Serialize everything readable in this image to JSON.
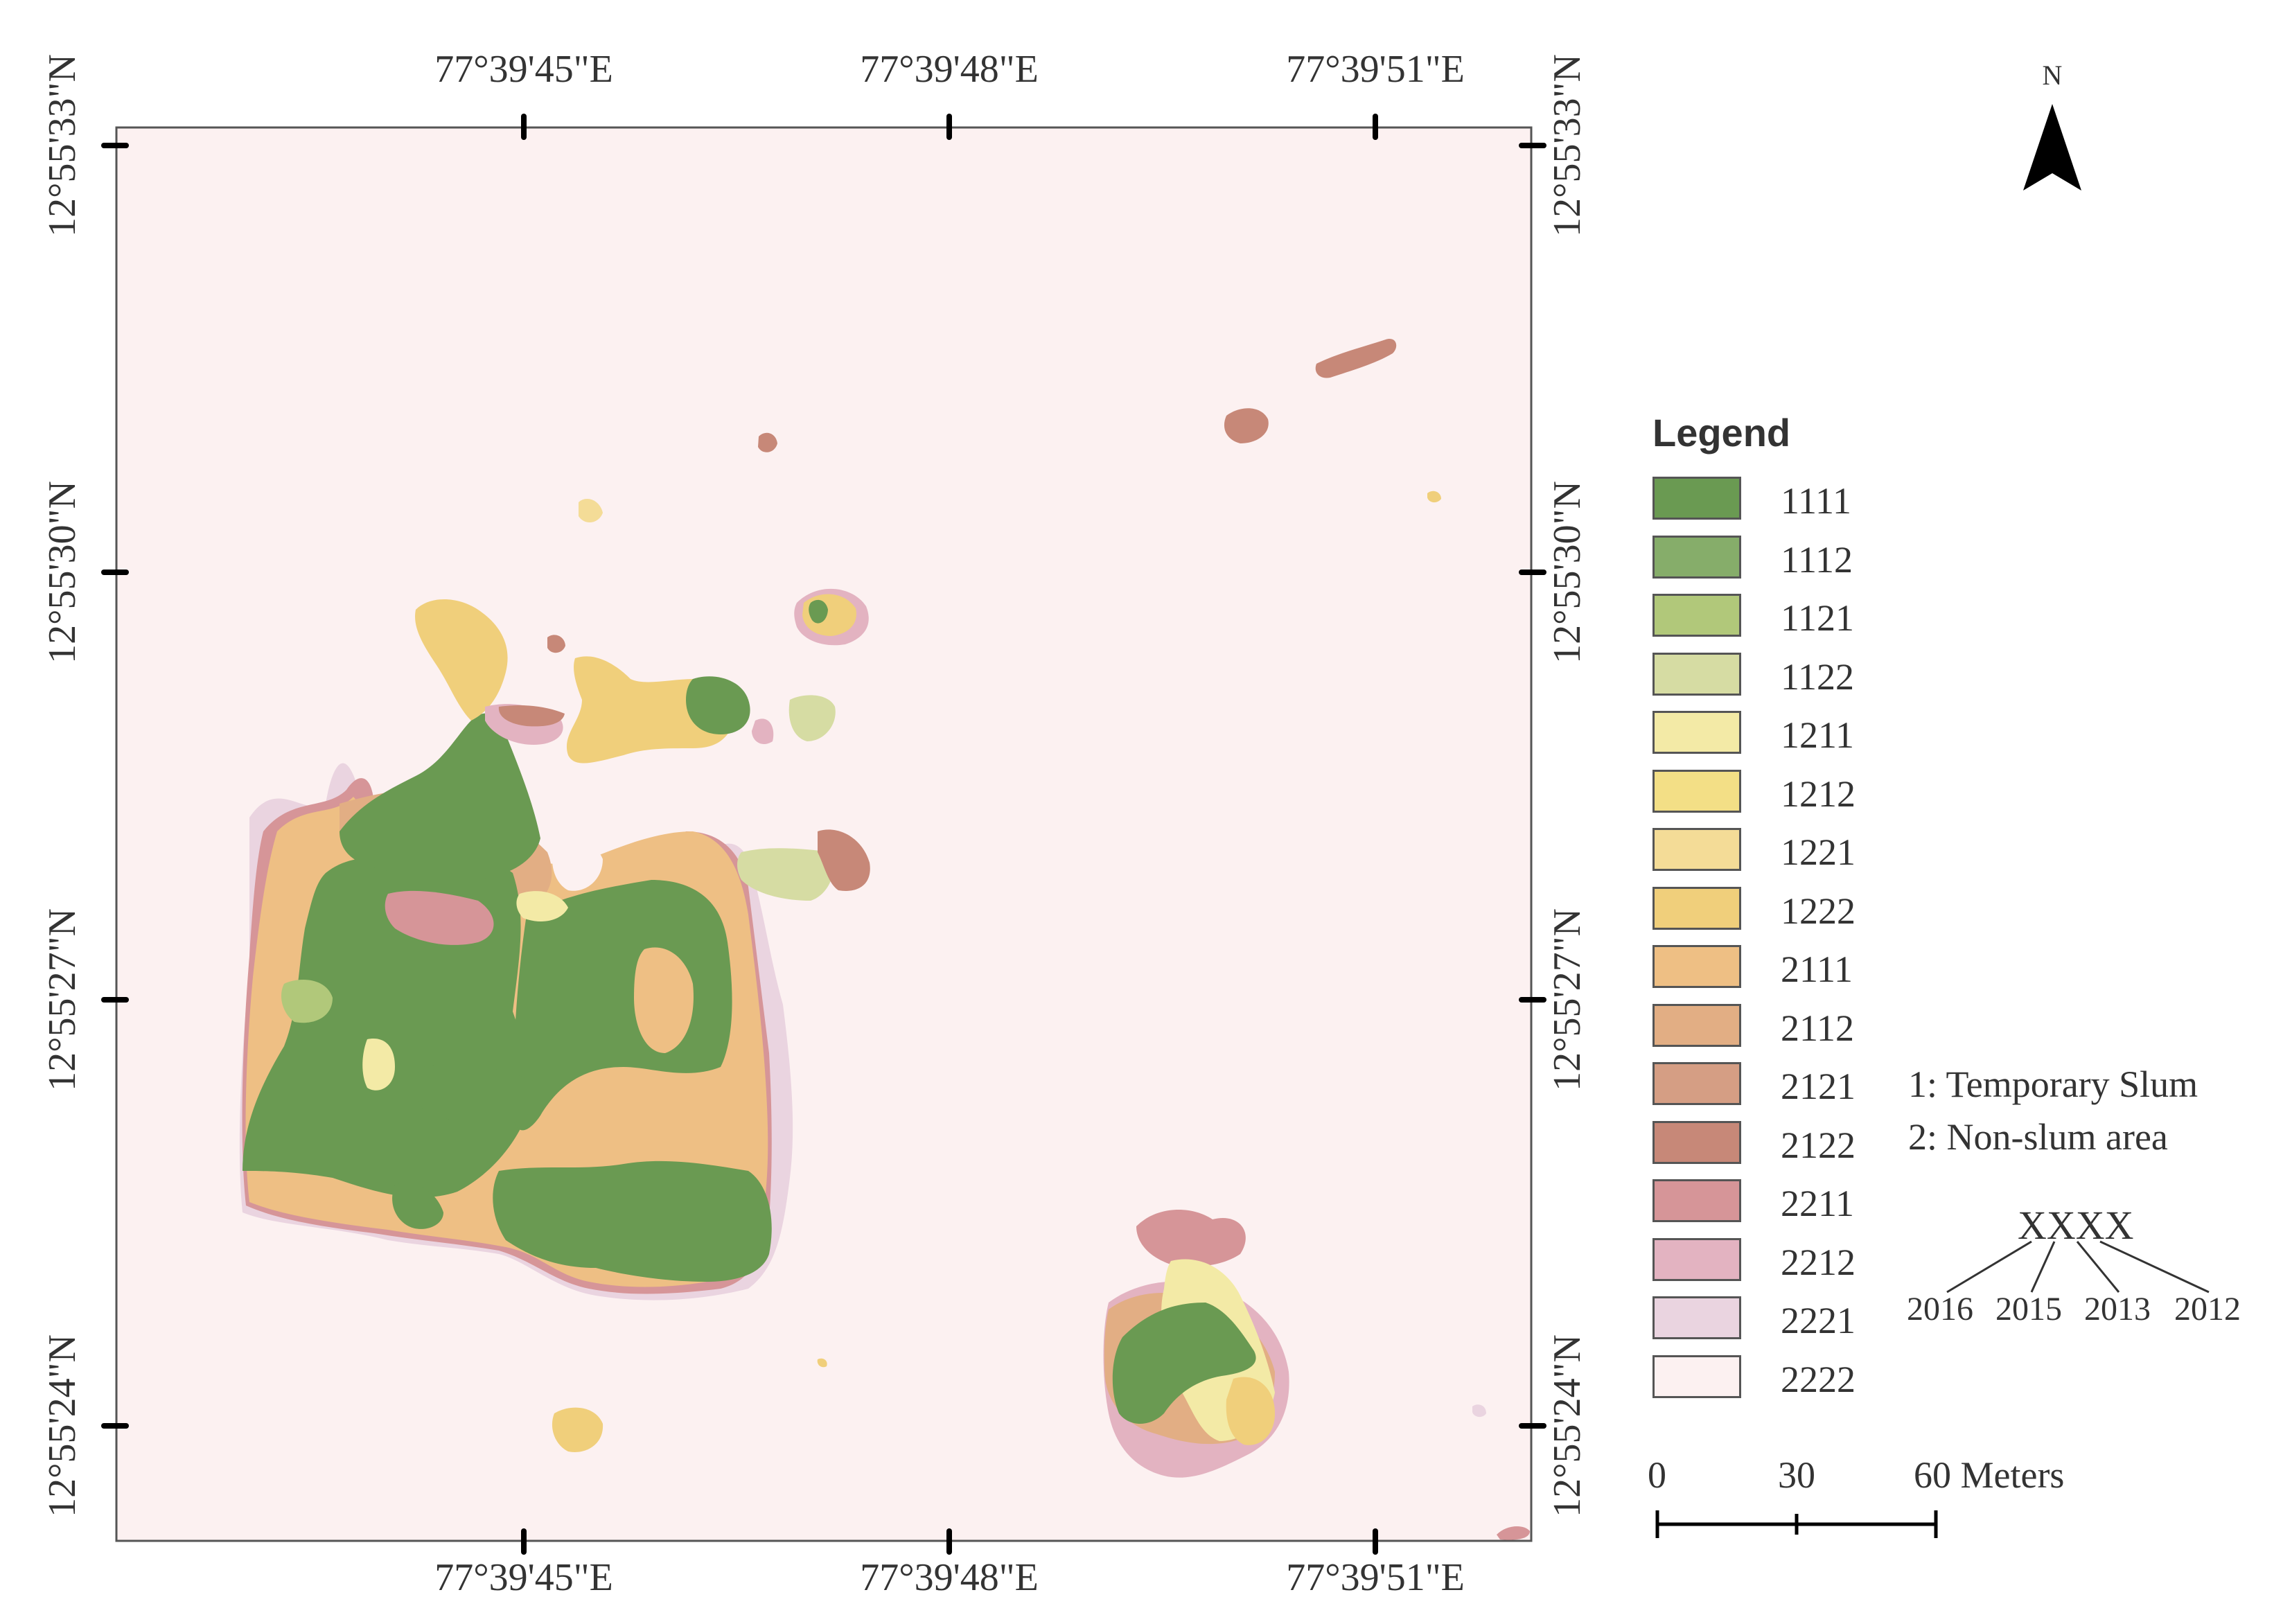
{
  "map": {
    "north_label": "N",
    "top_longitudes": [
      "77°39'45\"E",
      "77°39'48\"E",
      "77°39'51\"E"
    ],
    "bottom_longitudes": [
      "77°39'45\"E",
      "77°39'48\"E",
      "77°39'51\"E"
    ],
    "left_latitudes": [
      "12°55'33\"N",
      "12°55'30\"N",
      "12°55'27\"N",
      "12°55'24\"N"
    ],
    "right_latitudes": [
      "12°55'33\"N",
      "12°55'30\"N",
      "12°55'27\"N",
      "12°55'24\"N"
    ],
    "background_color": "#fcf1f1"
  },
  "legend": {
    "title": "Legend",
    "items": [
      {
        "label": "1111",
        "color": "#6a9a52"
      },
      {
        "label": "1112",
        "color": "#86ad6a"
      },
      {
        "label": "1121",
        "color": "#b1c87a"
      },
      {
        "label": "1122",
        "color": "#d6dca3"
      },
      {
        "label": "1211",
        "color": "#f3eaa6"
      },
      {
        "label": "1212",
        "color": "#f3df86"
      },
      {
        "label": "1221",
        "color": "#f4dc97"
      },
      {
        "label": "1222",
        "color": "#f0cf7b"
      },
      {
        "label": "2111",
        "color": "#eebf84"
      },
      {
        "label": "2112",
        "color": "#e2ae84"
      },
      {
        "label": "2121",
        "color": "#d59e84"
      },
      {
        "label": "2122",
        "color": "#c78878"
      },
      {
        "label": "2211",
        "color": "#d69598"
      },
      {
        "label": "2212",
        "color": "#e3b3c1"
      },
      {
        "label": "2221",
        "color": "#ead4e0"
      },
      {
        "label": "2222",
        "color": "#fcf1f1"
      }
    ]
  },
  "key": {
    "line1": "1: Temporary Slum",
    "line2": "2: Non-slum area",
    "code": "XXXX",
    "years": [
      "2016",
      "2015",
      "2013",
      "2012"
    ]
  },
  "scale_bar": {
    "ticks": [
      "0",
      "30",
      "60 Meters"
    ]
  }
}
